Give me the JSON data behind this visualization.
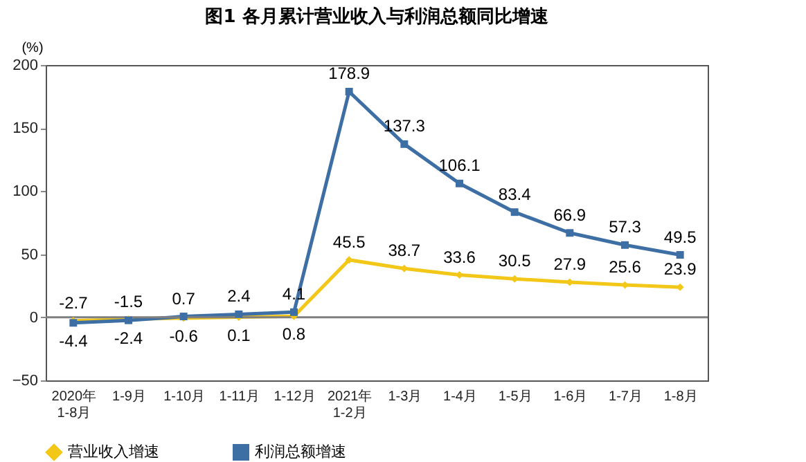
{
  "chart_data": {
    "type": "line",
    "title": "图1  各月累计营业收入与利润总额同比增速",
    "ylabel": "(%)",
    "categories": [
      "2020年\n1-8月",
      "1-9月",
      "1-10月",
      "1-11月",
      "1-12月",
      "2021年\n1-2月",
      "1-3月",
      "1-4月",
      "1-5月",
      "1-6月",
      "1-7月",
      "1-8月"
    ],
    "series": [
      {
        "name": "营业收入增速",
        "color": "#f2c718",
        "marker": "diamond",
        "values": [
          -2.7,
          -1.5,
          -0.6,
          0.1,
          0.8,
          45.5,
          38.7,
          33.6,
          30.5,
          27.9,
          25.6,
          23.9
        ]
      },
      {
        "name": "利润总额增速",
        "color": "#3d6fa5",
        "marker": "square",
        "values": [
          -4.4,
          -2.4,
          0.7,
          2.4,
          4.1,
          178.9,
          137.3,
          106.1,
          83.4,
          66.9,
          57.3,
          49.5
        ]
      }
    ],
    "ylim": [
      -50,
      200
    ],
    "yticks": [
      -50,
      0,
      50,
      100,
      150,
      200
    ],
    "grid": false,
    "data_labels": true,
    "legend": "bottom",
    "ref_lines": [
      {
        "axis": "y",
        "value": 0,
        "color": "#7f7f7f"
      }
    ]
  }
}
